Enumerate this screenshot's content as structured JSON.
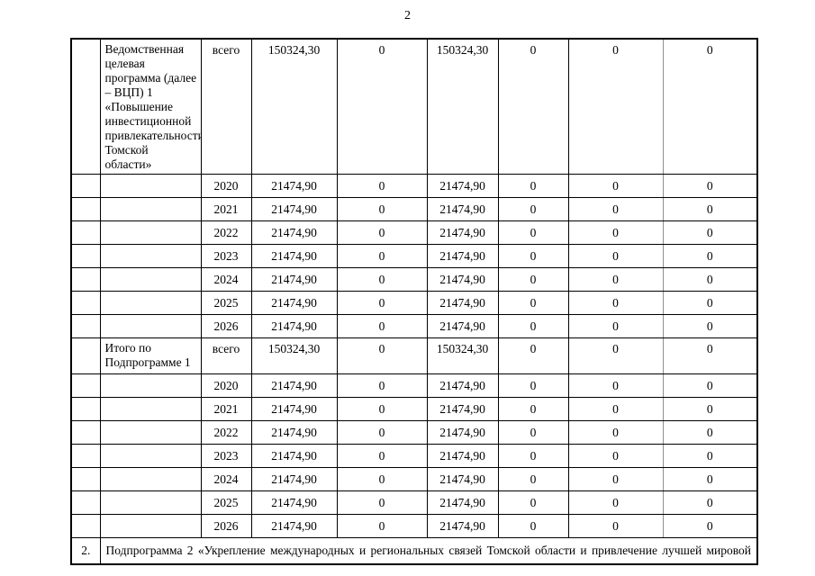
{
  "page_number": "2",
  "table": {
    "groups": [
      {
        "num": "",
        "name": "Ведомственная целевая программа (далее – ВЦП) 1 «Повышение инвестиционной привлекательности Томской области»",
        "rows": [
          {
            "period": "всего",
            "values": [
              "150324,30",
              "0",
              "150324,30",
              "0",
              "0",
              "0"
            ]
          },
          {
            "period": "2020",
            "values": [
              "21474,90",
              "0",
              "21474,90",
              "0",
              "0",
              "0"
            ]
          },
          {
            "period": "2021",
            "values": [
              "21474,90",
              "0",
              "21474,90",
              "0",
              "0",
              "0"
            ]
          },
          {
            "period": "2022",
            "values": [
              "21474,90",
              "0",
              "21474,90",
              "0",
              "0",
              "0"
            ]
          },
          {
            "period": "2023",
            "values": [
              "21474,90",
              "0",
              "21474,90",
              "0",
              "0",
              "0"
            ]
          },
          {
            "period": "2024",
            "values": [
              "21474,90",
              "0",
              "21474,90",
              "0",
              "0",
              "0"
            ]
          },
          {
            "period": "2025",
            "values": [
              "21474,90",
              "0",
              "21474,90",
              "0",
              "0",
              "0"
            ]
          },
          {
            "period": "2026",
            "values": [
              "21474,90",
              "0",
              "21474,90",
              "0",
              "0",
              "0"
            ]
          }
        ]
      },
      {
        "num": "",
        "name": "Итого по Подпрограмме 1",
        "rows": [
          {
            "period": "всего",
            "values": [
              "150324,30",
              "0",
              "150324,30",
              "0",
              "0",
              "0"
            ]
          },
          {
            "period": "2020",
            "values": [
              "21474,90",
              "0",
              "21474,90",
              "0",
              "0",
              "0"
            ]
          },
          {
            "period": "2021",
            "values": [
              "21474,90",
              "0",
              "21474,90",
              "0",
              "0",
              "0"
            ]
          },
          {
            "period": "2022",
            "values": [
              "21474,90",
              "0",
              "21474,90",
              "0",
              "0",
              "0"
            ]
          },
          {
            "period": "2023",
            "values": [
              "21474,90",
              "0",
              "21474,90",
              "0",
              "0",
              "0"
            ]
          },
          {
            "period": "2024",
            "values": [
              "21474,90",
              "0",
              "21474,90",
              "0",
              "0",
              "0"
            ]
          },
          {
            "period": "2025",
            "values": [
              "21474,90",
              "0",
              "21474,90",
              "0",
              "0",
              "0"
            ]
          },
          {
            "period": "2026",
            "values": [
              "21474,90",
              "0",
              "21474,90",
              "0",
              "0",
              "0"
            ]
          }
        ]
      }
    ],
    "last_row": {
      "num": "2.",
      "text": "Подпрограмма 2 «Укрепление международных и региональных связей Томской области и привлечение лучшей мировой"
    }
  }
}
